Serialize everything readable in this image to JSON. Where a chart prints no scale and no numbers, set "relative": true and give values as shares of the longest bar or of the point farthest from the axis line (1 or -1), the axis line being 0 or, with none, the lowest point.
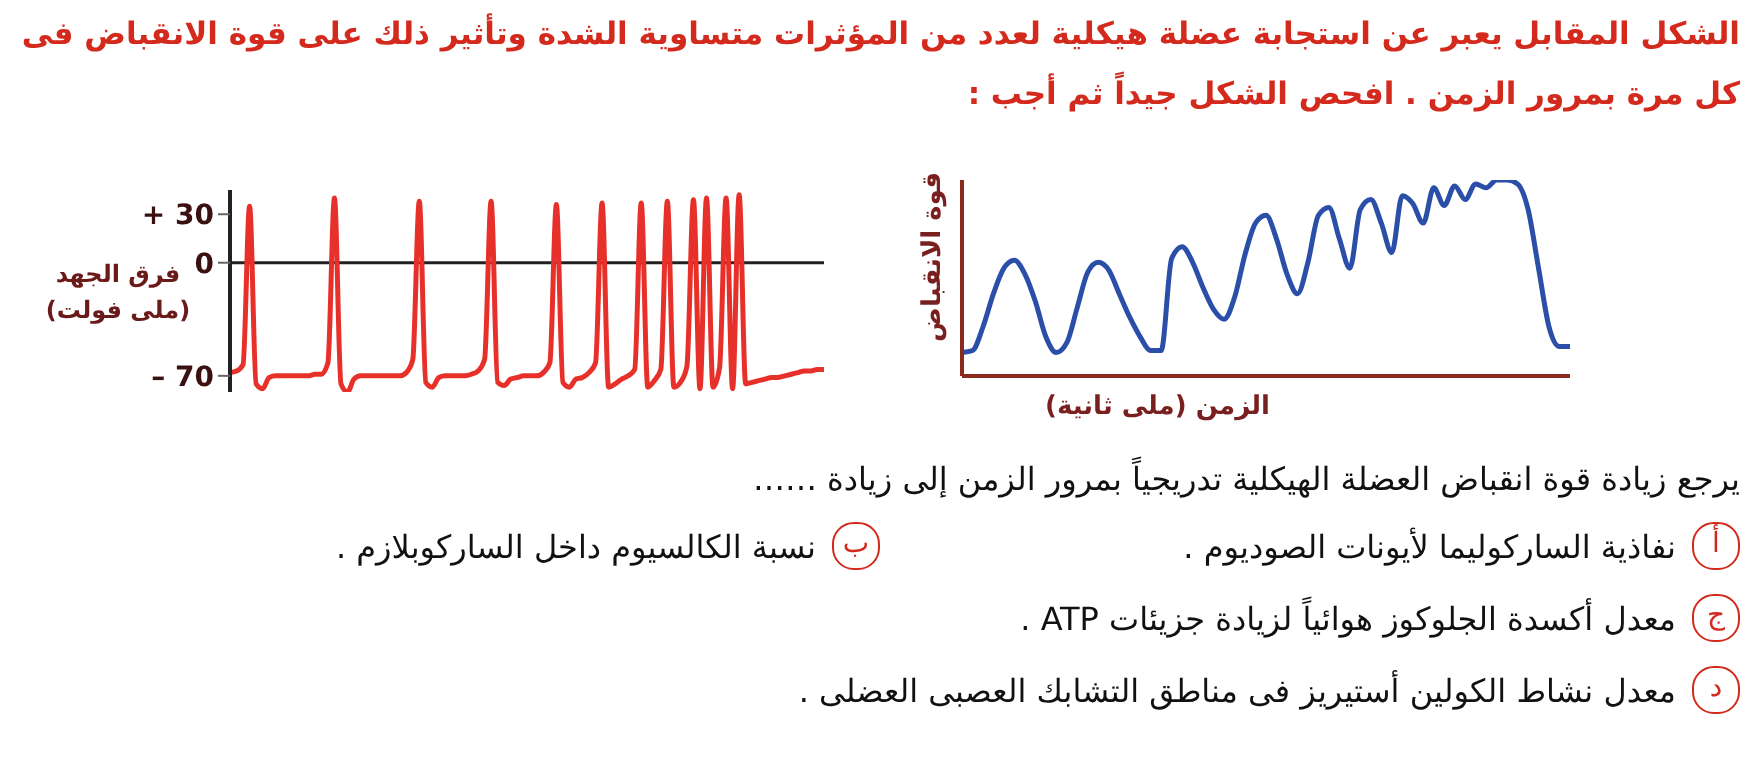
{
  "chart_data": [
    {
      "type": "other",
      "title": "الشكل المقابل يعبر عن استجابة عضلة هيكلية لعدد من المؤثرات متساوية الشدة وتأثير ذلك على قوة الانقباض فى كل مرة بمرور الزمن . افحص الشكل جيداً ثم أجب :"
    },
    {
      "type": "line",
      "relative": true,
      "marker": "none",
      "color": "#2b4fa8",
      "ylabel": "قوة الانقباض",
      "xlabel": "الزمن (ملى ثانية)",
      "categories": [
        null,
        null,
        null,
        null,
        null,
        null,
        null,
        null,
        null,
        null,
        null,
        null,
        null,
        null,
        null,
        null,
        null,
        null,
        null,
        null,
        null,
        null,
        null,
        null,
        null,
        null,
        null,
        null,
        null,
        null,
        null,
        null,
        null,
        null,
        null,
        null,
        null,
        null,
        null,
        null,
        null,
        null,
        null,
        null,
        null,
        null,
        null,
        null,
        null,
        null,
        null,
        null,
        null,
        null,
        null,
        null,
        null,
        null,
        null
      ],
      "values": [
        0.12,
        0.13,
        0.25,
        0.42,
        0.55,
        0.59,
        0.52,
        0.38,
        0.2,
        0.12,
        0.17,
        0.35,
        0.53,
        0.58,
        0.54,
        0.42,
        0.3,
        0.2,
        0.13,
        0.13,
        0.6,
        0.66,
        0.58,
        0.45,
        0.34,
        0.29,
        0.4,
        0.62,
        0.78,
        0.82,
        0.7,
        0.52,
        0.42,
        0.58,
        0.82,
        0.86,
        0.7,
        0.55,
        0.85,
        0.9,
        0.78,
        0.63,
        0.92,
        0.88,
        0.78,
        0.96,
        0.87,
        0.97,
        0.9,
        0.98,
        0.96,
        1,
        1,
        0.98,
        0.85,
        0.55,
        0.25,
        0.15,
        0.15
      ]
    },
    {
      "type": "line",
      "marker": "none",
      "color": "#e8302a",
      "ylabel": "فرق الجهد (ملى فولت)",
      "ylim": [
        -80,
        45
      ],
      "yticks": [
        {
          "value": 30,
          "label": "+ 30"
        },
        0,
        {
          "value": -70,
          "label": "– 70"
        }
      ],
      "ref_lines": [
        {
          "axis": "y",
          "value": 0,
          "color": "#222222"
        }
      ],
      "categories": [
        null,
        null,
        null,
        null,
        null,
        null,
        null,
        null,
        null,
        null,
        null,
        null,
        null,
        null,
        null,
        null,
        null,
        null,
        null,
        null,
        null,
        null,
        null,
        null,
        null,
        null,
        null,
        null,
        null,
        null,
        null,
        null,
        null,
        null,
        null,
        null,
        null,
        null,
        null,
        null,
        null,
        null,
        null,
        null,
        null,
        null,
        null,
        null,
        null,
        null,
        null,
        null,
        null,
        null,
        null,
        null,
        null,
        null,
        null,
        null,
        null,
        null,
        null,
        null,
        null,
        null,
        null,
        null,
        null,
        null,
        null,
        null,
        null,
        null,
        null,
        null,
        null,
        null,
        null,
        null,
        null,
        null,
        null,
        null,
        null,
        null,
        null,
        null,
        null,
        null,
        null,
        null
      ],
      "values": [
        -68,
        -67,
        -63,
        35,
        -75,
        -78,
        -71,
        -70,
        -70,
        -70,
        -70,
        -70,
        -70,
        -69,
        -69,
        -62,
        40,
        -75,
        -80,
        -72,
        -70,
        -70,
        -70,
        -70,
        -70,
        -70,
        -70,
        -68,
        -60,
        38,
        -74,
        -77,
        -71,
        -70,
        -70,
        -70,
        -70,
        -69,
        -67,
        -60,
        38,
        -74,
        -76,
        -72,
        -71,
        -70,
        -70,
        -70,
        -68,
        -62,
        36,
        -74,
        -77,
        -72,
        -71,
        -68,
        -62,
        37,
        -77,
        -75,
        -72,
        -70,
        -66,
        37,
        -77,
        -73,
        -66,
        38,
        -77,
        -74,
        -64,
        39,
        -78,
        40,
        -77,
        -65,
        40,
        -78,
        42,
        -75,
        -74,
        -73,
        -72,
        -71,
        -71,
        -70,
        -69,
        -68,
        -67,
        -67,
        -66,
        -66
      ]
    },
    {
      "type": "other",
      "annotations": [
        "يرجع زيادة قوة انقباض العضلة الهيكلية تدريجياً بمرور الزمن إلى زيادة ……",
        "أ",
        "نفاذية الساركوليما لأيونات الصوديوم .",
        "ب",
        "نسبة الكالسيوم داخل الساركوبلازم .",
        "ج",
        "معدل أكسدة الجلوكوز هوائياً لزيادة جزيئات ATP .",
        "د",
        "معدل نشاط الكولين أستيريز فى مناطق التشابك العصبى العضلى ."
      ]
    }
  ]
}
